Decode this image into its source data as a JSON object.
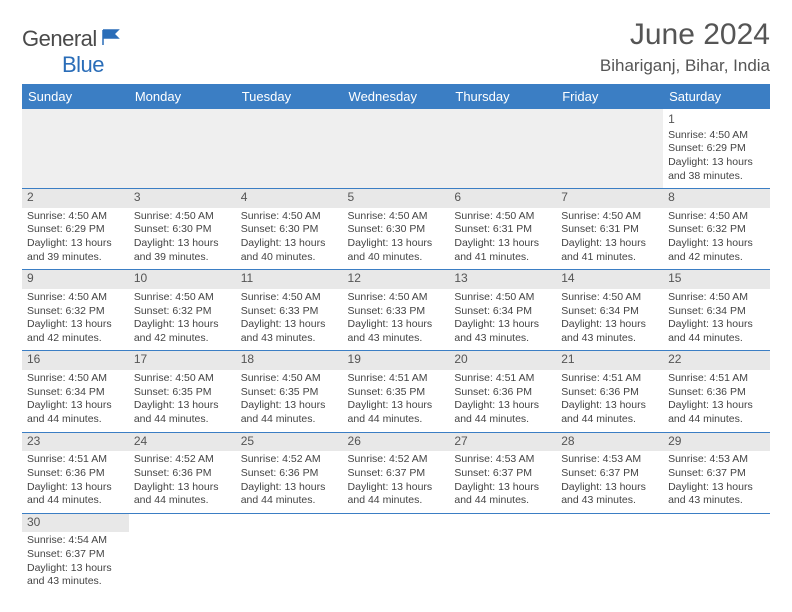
{
  "brand": {
    "name_part1": "General",
    "name_part2": "Blue",
    "color_general": "#4a4a4a",
    "color_blue": "#2a6db8"
  },
  "title": "June 2024",
  "location": "Bihariganj, Bihar, India",
  "header_bg_color": "#3b7ec4",
  "header_text_color": "#ffffff",
  "daynum_shade_color": "#e8e8e8",
  "border_color": "#3b7ec4",
  "weekdays": [
    "Sunday",
    "Monday",
    "Tuesday",
    "Wednesday",
    "Thursday",
    "Friday",
    "Saturday"
  ],
  "weeks": [
    [
      null,
      null,
      null,
      null,
      null,
      null,
      {
        "day": "1",
        "sunrise": "Sunrise: 4:50 AM",
        "sunset": "Sunset: 6:29 PM",
        "daylight1": "Daylight: 13 hours",
        "daylight2": "and 38 minutes."
      }
    ],
    [
      {
        "day": "2",
        "sunrise": "Sunrise: 4:50 AM",
        "sunset": "Sunset: 6:29 PM",
        "daylight1": "Daylight: 13 hours",
        "daylight2": "and 39 minutes."
      },
      {
        "day": "3",
        "sunrise": "Sunrise: 4:50 AM",
        "sunset": "Sunset: 6:30 PM",
        "daylight1": "Daylight: 13 hours",
        "daylight2": "and 39 minutes."
      },
      {
        "day": "4",
        "sunrise": "Sunrise: 4:50 AM",
        "sunset": "Sunset: 6:30 PM",
        "daylight1": "Daylight: 13 hours",
        "daylight2": "and 40 minutes."
      },
      {
        "day": "5",
        "sunrise": "Sunrise: 4:50 AM",
        "sunset": "Sunset: 6:30 PM",
        "daylight1": "Daylight: 13 hours",
        "daylight2": "and 40 minutes."
      },
      {
        "day": "6",
        "sunrise": "Sunrise: 4:50 AM",
        "sunset": "Sunset: 6:31 PM",
        "daylight1": "Daylight: 13 hours",
        "daylight2": "and 41 minutes."
      },
      {
        "day": "7",
        "sunrise": "Sunrise: 4:50 AM",
        "sunset": "Sunset: 6:31 PM",
        "daylight1": "Daylight: 13 hours",
        "daylight2": "and 41 minutes."
      },
      {
        "day": "8",
        "sunrise": "Sunrise: 4:50 AM",
        "sunset": "Sunset: 6:32 PM",
        "daylight1": "Daylight: 13 hours",
        "daylight2": "and 42 minutes."
      }
    ],
    [
      {
        "day": "9",
        "sunrise": "Sunrise: 4:50 AM",
        "sunset": "Sunset: 6:32 PM",
        "daylight1": "Daylight: 13 hours",
        "daylight2": "and 42 minutes."
      },
      {
        "day": "10",
        "sunrise": "Sunrise: 4:50 AM",
        "sunset": "Sunset: 6:32 PM",
        "daylight1": "Daylight: 13 hours",
        "daylight2": "and 42 minutes."
      },
      {
        "day": "11",
        "sunrise": "Sunrise: 4:50 AM",
        "sunset": "Sunset: 6:33 PM",
        "daylight1": "Daylight: 13 hours",
        "daylight2": "and 43 minutes."
      },
      {
        "day": "12",
        "sunrise": "Sunrise: 4:50 AM",
        "sunset": "Sunset: 6:33 PM",
        "daylight1": "Daylight: 13 hours",
        "daylight2": "and 43 minutes."
      },
      {
        "day": "13",
        "sunrise": "Sunrise: 4:50 AM",
        "sunset": "Sunset: 6:34 PM",
        "daylight1": "Daylight: 13 hours",
        "daylight2": "and 43 minutes."
      },
      {
        "day": "14",
        "sunrise": "Sunrise: 4:50 AM",
        "sunset": "Sunset: 6:34 PM",
        "daylight1": "Daylight: 13 hours",
        "daylight2": "and 43 minutes."
      },
      {
        "day": "15",
        "sunrise": "Sunrise: 4:50 AM",
        "sunset": "Sunset: 6:34 PM",
        "daylight1": "Daylight: 13 hours",
        "daylight2": "and 44 minutes."
      }
    ],
    [
      {
        "day": "16",
        "sunrise": "Sunrise: 4:50 AM",
        "sunset": "Sunset: 6:34 PM",
        "daylight1": "Daylight: 13 hours",
        "daylight2": "and 44 minutes."
      },
      {
        "day": "17",
        "sunrise": "Sunrise: 4:50 AM",
        "sunset": "Sunset: 6:35 PM",
        "daylight1": "Daylight: 13 hours",
        "daylight2": "and 44 minutes."
      },
      {
        "day": "18",
        "sunrise": "Sunrise: 4:50 AM",
        "sunset": "Sunset: 6:35 PM",
        "daylight1": "Daylight: 13 hours",
        "daylight2": "and 44 minutes."
      },
      {
        "day": "19",
        "sunrise": "Sunrise: 4:51 AM",
        "sunset": "Sunset: 6:35 PM",
        "daylight1": "Daylight: 13 hours",
        "daylight2": "and 44 minutes."
      },
      {
        "day": "20",
        "sunrise": "Sunrise: 4:51 AM",
        "sunset": "Sunset: 6:36 PM",
        "daylight1": "Daylight: 13 hours",
        "daylight2": "and 44 minutes."
      },
      {
        "day": "21",
        "sunrise": "Sunrise: 4:51 AM",
        "sunset": "Sunset: 6:36 PM",
        "daylight1": "Daylight: 13 hours",
        "daylight2": "and 44 minutes."
      },
      {
        "day": "22",
        "sunrise": "Sunrise: 4:51 AM",
        "sunset": "Sunset: 6:36 PM",
        "daylight1": "Daylight: 13 hours",
        "daylight2": "and 44 minutes."
      }
    ],
    [
      {
        "day": "23",
        "sunrise": "Sunrise: 4:51 AM",
        "sunset": "Sunset: 6:36 PM",
        "daylight1": "Daylight: 13 hours",
        "daylight2": "and 44 minutes."
      },
      {
        "day": "24",
        "sunrise": "Sunrise: 4:52 AM",
        "sunset": "Sunset: 6:36 PM",
        "daylight1": "Daylight: 13 hours",
        "daylight2": "and 44 minutes."
      },
      {
        "day": "25",
        "sunrise": "Sunrise: 4:52 AM",
        "sunset": "Sunset: 6:36 PM",
        "daylight1": "Daylight: 13 hours",
        "daylight2": "and 44 minutes."
      },
      {
        "day": "26",
        "sunrise": "Sunrise: 4:52 AM",
        "sunset": "Sunset: 6:37 PM",
        "daylight1": "Daylight: 13 hours",
        "daylight2": "and 44 minutes."
      },
      {
        "day": "27",
        "sunrise": "Sunrise: 4:53 AM",
        "sunset": "Sunset: 6:37 PM",
        "daylight1": "Daylight: 13 hours",
        "daylight2": "and 44 minutes."
      },
      {
        "day": "28",
        "sunrise": "Sunrise: 4:53 AM",
        "sunset": "Sunset: 6:37 PM",
        "daylight1": "Daylight: 13 hours",
        "daylight2": "and 43 minutes."
      },
      {
        "day": "29",
        "sunrise": "Sunrise: 4:53 AM",
        "sunset": "Sunset: 6:37 PM",
        "daylight1": "Daylight: 13 hours",
        "daylight2": "and 43 minutes."
      }
    ],
    [
      {
        "day": "30",
        "sunrise": "Sunrise: 4:54 AM",
        "sunset": "Sunset: 6:37 PM",
        "daylight1": "Daylight: 13 hours",
        "daylight2": "and 43 minutes."
      },
      null,
      null,
      null,
      null,
      null,
      null
    ]
  ]
}
